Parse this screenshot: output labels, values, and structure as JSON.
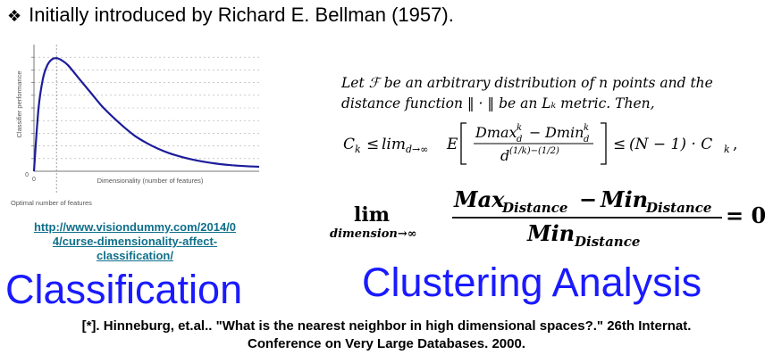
{
  "header": {
    "bullet_icon": "four-diamond-bullet-icon",
    "text": "Initially introduced by  Richard E. Bellman (1957)."
  },
  "chart_data": {
    "type": "line",
    "title": "",
    "xlabel": "Dimensionality (number of features)",
    "ylabel": "Classifier performance",
    "x_origin_label": "0",
    "y_origin_label": "0",
    "optimal_label": "Optimal number of features",
    "x": [
      0,
      0.2,
      0.4,
      0.6,
      0.8,
      1.0,
      1.2,
      1.5,
      2.0,
      2.5,
      3.0,
      3.5,
      4.0,
      4.5,
      5.0,
      5.5,
      6.0,
      6.5,
      7.0,
      7.5,
      8.0,
      8.5,
      9.0,
      9.5,
      10.0
    ],
    "series": [
      {
        "values": [
          0.0,
          0.55,
          0.82,
          0.94,
          0.99,
          1.0,
          0.985,
          0.94,
          0.82,
          0.7,
          0.58,
          0.48,
          0.39,
          0.31,
          0.25,
          0.2,
          0.16,
          0.13,
          0.105,
          0.085,
          0.07,
          0.058,
          0.05,
          0.044,
          0.04
        ]
      }
    ],
    "xlim": [
      0,
      10
    ],
    "ylim": [
      0,
      1.12
    ],
    "optimal_x": 1.0,
    "grid": true,
    "line_color": "#1c1c9a"
  },
  "source_link": {
    "line1": "http://www.visiondummy.com/2014/0",
    "line2": "4/curse-dimensionality-affect-",
    "line3": "classification/"
  },
  "labels": {
    "classification": "Classification",
    "clustering": "Clustering Analysis"
  },
  "theorem": {
    "line1": "Let ℱ be an arbitrary distribution of n points and the",
    "line2": "distance function ‖ · ‖ be an Lₖ metric. Then,",
    "formula1": {
      "lhs": "C",
      "lhs_sub": "k",
      "leq1": "≤",
      "lim": "lim",
      "lim_sub": "d→∞",
      "E": "E",
      "num_a": "Dmax",
      "num_a_sup": "k",
      "num_a_sub": "d",
      "num_minus": "−",
      "num_b": "Dmin",
      "num_b_sup": "k",
      "num_b_sub": "d",
      "den": "d",
      "den_sup": "(1/k)−(1/2)",
      "leq2": "≤",
      "rhs": "(N − 1) · C",
      "rhs_sub": "k",
      "rhs_end": ","
    },
    "formula2": {
      "lim": "lim",
      "lim_sub": "dimension→∞",
      "num_a": "Max",
      "num_a_sub": "Distance",
      "num_minus": "−",
      "num_b": "Min",
      "num_b_sub": "Distance",
      "den": "Min",
      "den_sub": "Distance",
      "eq": "= 0"
    }
  },
  "citation": {
    "line1": "[*]. Hinneburg, et.al.. \"What is the nearest neighbor in high dimensional spaces?.\" 26th Internat.",
    "line2": "Conference on Very Large Databases. 2000."
  }
}
